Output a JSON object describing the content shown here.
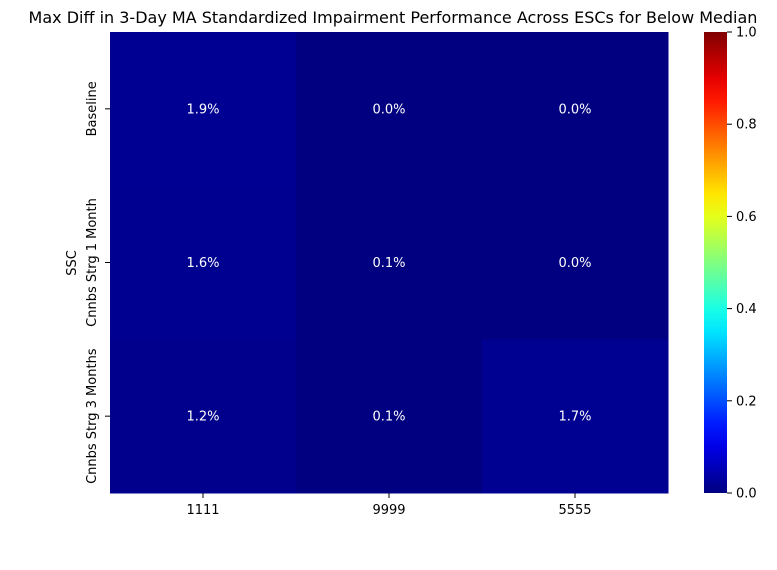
{
  "chart_data": {
    "type": "heatmap",
    "title": "Max Diff in 3-Day MA Standardized Impairment Performance Across ESCs for Below Median",
    "xlabel": "",
    "ylabel": "SSC",
    "x_categories": [
      "1111",
      "9999",
      "5555"
    ],
    "y_categories": [
      "Baseline",
      "Cnnbs Strg 1 Month",
      "Cnnbs Strg 3 Months"
    ],
    "values": [
      [
        0.019,
        0.0,
        0.0
      ],
      [
        0.016,
        0.001,
        0.0
      ],
      [
        0.012,
        0.001,
        0.017
      ]
    ],
    "annotations": [
      [
        "1.9%",
        "0.0%",
        "0.0%"
      ],
      [
        "1.6%",
        "0.1%",
        "0.0%"
      ],
      [
        "1.2%",
        "0.1%",
        "1.7%"
      ]
    ],
    "colormap": "jet",
    "vmin": 0,
    "vmax": 1,
    "colorbar": {
      "ticks": [
        0,
        0.2,
        0.4,
        0.6,
        0.8,
        1.0
      ],
      "tick_labels": [
        "0.0",
        "0.2",
        "0.4",
        "0.6",
        "0.8",
        "1.0"
      ]
    },
    "annotation_color": "#ffffff",
    "grid": false
  }
}
